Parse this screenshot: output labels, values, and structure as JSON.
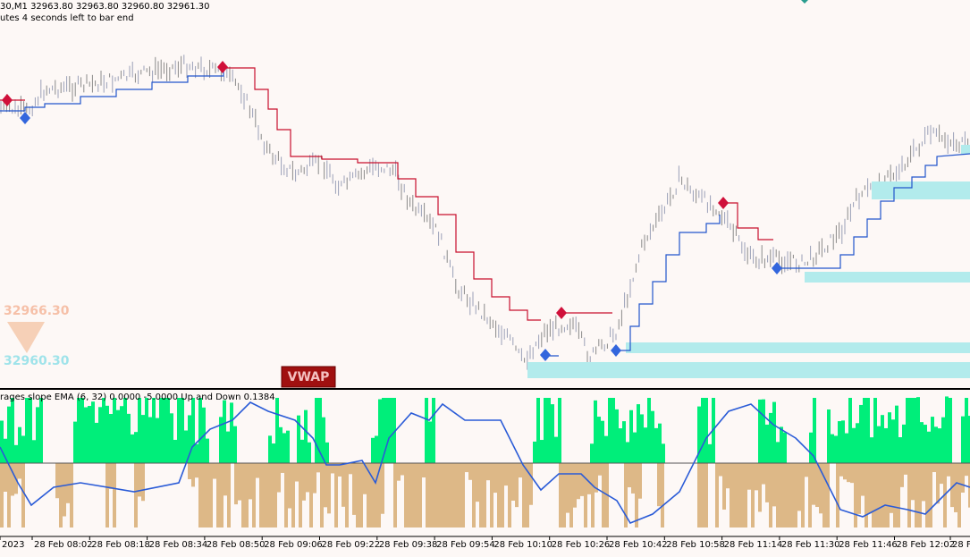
{
  "header": {
    "symbol_line": "30,M1  32963.80 32963.80 32960.80 32961.30",
    "timer": "utes 4 seconds left to bar end"
  },
  "price_labels": [
    "32966.30",
    "32960.30"
  ],
  "button": "VWAP",
  "indicator_label": "rages slope EMA (6, 32) 0.0000 -5.0000  Up and Down 0.1384",
  "time_axis": [
    "2023",
    "28 Feb 08:02",
    "28 Feb 08:18",
    "28 Feb 08:34",
    "28 Feb 08:50",
    "28 Feb 09:06",
    "28 Feb 09:22",
    "28 Feb 09:38",
    "28 Feb 09:54",
    "28 Feb 10:10",
    "28 Feb 10:26",
    "28 Feb 10:42",
    "28 Feb 10:58",
    "28 Feb 11:14",
    "28 Feb 11:30",
    "28 Feb 11:46",
    "28 Feb 12:02",
    "28 Fe"
  ]
}
